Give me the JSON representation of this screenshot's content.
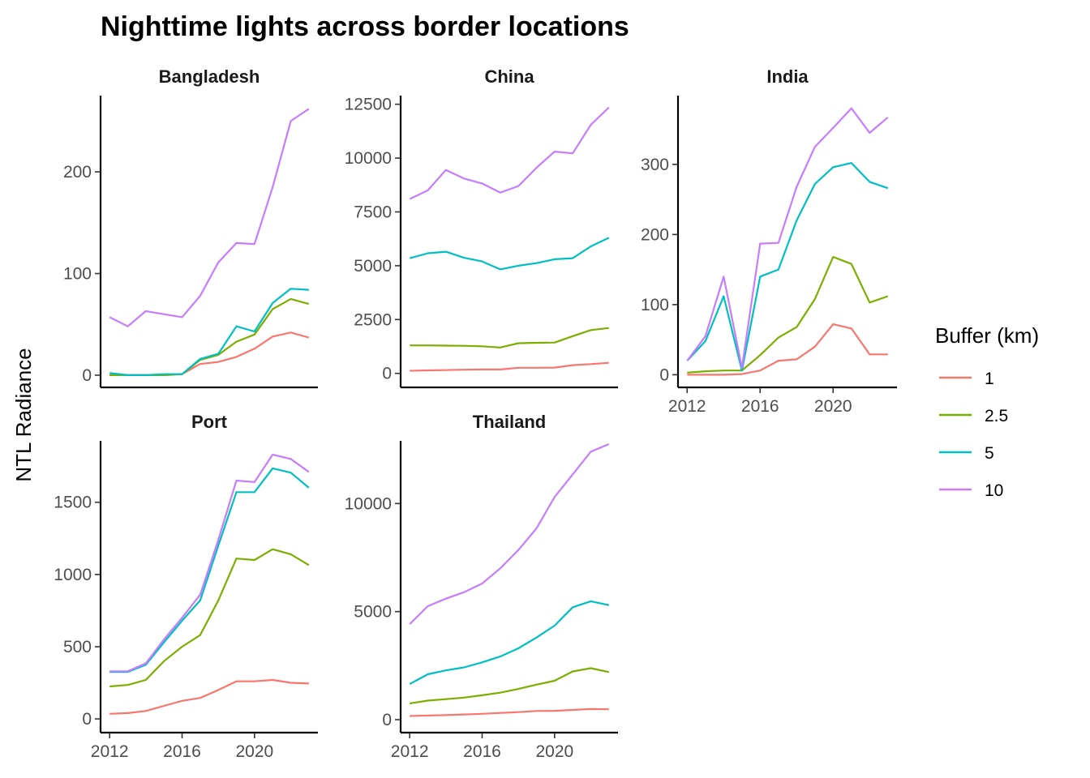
{
  "title": "Nighttime lights across border locations",
  "ylabel": "NTL Radiance",
  "legend": {
    "title": "Buffer (km)",
    "items": [
      {
        "label": "1",
        "color": "#F8766D"
      },
      {
        "label": "2.5",
        "color": "#7CAE00"
      },
      {
        "label": "5",
        "color": "#00BFC4"
      },
      {
        "label": "10",
        "color": "#C77CFF"
      }
    ]
  },
  "chart_data": [
    {
      "type": "line",
      "panel": "Bangladesh",
      "x": [
        2012,
        2013,
        2014,
        2015,
        2016,
        2017,
        2018,
        2019,
        2020,
        2021,
        2022,
        2023
      ],
      "ylim": [
        -12,
        275
      ],
      "yticks": [
        "0",
        "100",
        "200"
      ],
      "xticks": [],
      "series": [
        {
          "name": "1",
          "values": [
            0,
            0,
            0,
            0,
            1,
            11,
            13,
            18,
            26,
            38,
            42,
            37
          ]
        },
        {
          "name": "2.5",
          "values": [
            0,
            0,
            0,
            0,
            1,
            15,
            20,
            33,
            40,
            65,
            75,
            70
          ]
        },
        {
          "name": "5",
          "values": [
            2,
            0,
            0,
            1,
            1,
            16,
            21,
            48,
            43,
            71,
            85,
            84
          ]
        },
        {
          "name": "10",
          "values": [
            57,
            48,
            63,
            60,
            57,
            78,
            111,
            130,
            129,
            185,
            250,
            262
          ]
        }
      ]
    },
    {
      "type": "line",
      "panel": "China",
      "x": [
        2012,
        2013,
        2014,
        2015,
        2016,
        2017,
        2018,
        2019,
        2020,
        2021,
        2022,
        2023
      ],
      "ylim": [
        -650,
        12900
      ],
      "yticks": [
        "0",
        "2500",
        "5000",
        "7500",
        "10000",
        "12500"
      ],
      "xticks": [],
      "series": [
        {
          "name": "1",
          "values": [
            120,
            140,
            150,
            170,
            180,
            180,
            260,
            260,
            270,
            380,
            430,
            490
          ]
        },
        {
          "name": "2.5",
          "values": [
            1300,
            1300,
            1290,
            1280,
            1260,
            1200,
            1400,
            1420,
            1430,
            1730,
            2010,
            2110
          ]
        },
        {
          "name": "5",
          "values": [
            5350,
            5580,
            5650,
            5370,
            5200,
            4830,
            5000,
            5120,
            5300,
            5350,
            5900,
            6300
          ]
        },
        {
          "name": "10",
          "values": [
            8100,
            8500,
            9450,
            9050,
            8820,
            8400,
            8700,
            9550,
            10300,
            10220,
            11550,
            12350
          ]
        }
      ]
    },
    {
      "type": "line",
      "panel": "India",
      "x": [
        2012,
        2013,
        2014,
        2015,
        2016,
        2017,
        2018,
        2019,
        2020,
        2021,
        2022,
        2023
      ],
      "ylim": [
        -18,
        398
      ],
      "yticks": [
        "0",
        "100",
        "200",
        "300"
      ],
      "xticks": [
        "2012",
        "2016",
        "2020"
      ],
      "series": [
        {
          "name": "1",
          "values": [
            0,
            0,
            0,
            1,
            6,
            20,
            22,
            40,
            72,
            66,
            29,
            29
          ]
        },
        {
          "name": "2.5",
          "values": [
            3,
            5,
            6,
            6,
            28,
            53,
            68,
            108,
            168,
            158,
            103,
            112
          ]
        },
        {
          "name": "5",
          "values": [
            20,
            48,
            112,
            6,
            140,
            150,
            220,
            272,
            296,
            302,
            275,
            266
          ]
        },
        {
          "name": "10",
          "values": [
            20,
            55,
            140,
            10,
            187,
            188,
            268,
            325,
            352,
            380,
            345,
            367
          ]
        }
      ]
    },
    {
      "type": "line",
      "panel": "Port",
      "x": [
        2012,
        2013,
        2014,
        2015,
        2016,
        2017,
        2018,
        2019,
        2020,
        2021,
        2022,
        2023
      ],
      "ylim": [
        -95,
        1925
      ],
      "yticks": [
        "0",
        "500",
        "1000",
        "1500"
      ],
      "xticks": [
        "2012",
        "2016",
        "2020"
      ],
      "series": [
        {
          "name": "1",
          "values": [
            35,
            40,
            55,
            90,
            125,
            145,
            200,
            260,
            260,
            270,
            250,
            245
          ]
        },
        {
          "name": "2.5",
          "values": [
            225,
            235,
            270,
            400,
            500,
            580,
            820,
            1110,
            1100,
            1175,
            1140,
            1065
          ]
        },
        {
          "name": "5",
          "values": [
            325,
            325,
            375,
            530,
            680,
            820,
            1200,
            1570,
            1570,
            1735,
            1705,
            1600
          ]
        },
        {
          "name": "10",
          "values": [
            330,
            330,
            385,
            550,
            700,
            860,
            1240,
            1650,
            1640,
            1830,
            1800,
            1710
          ]
        }
      ]
    },
    {
      "type": "line",
      "panel": "Thailand",
      "x": [
        2012,
        2013,
        2014,
        2015,
        2016,
        2017,
        2018,
        2019,
        2020,
        2021,
        2022,
        2023
      ],
      "ylim": [
        -600,
        12900
      ],
      "yticks": [
        "0",
        "5000",
        "10000"
      ],
      "xticks": [
        "2012",
        "2016",
        "2020"
      ],
      "series": [
        {
          "name": "1",
          "values": [
            170,
            190,
            210,
            240,
            270,
            310,
            350,
            400,
            410,
            450,
            490,
            480
          ]
        },
        {
          "name": "2.5",
          "values": [
            750,
            880,
            950,
            1020,
            1130,
            1250,
            1420,
            1620,
            1800,
            2230,
            2380,
            2200
          ]
        },
        {
          "name": "5",
          "values": [
            1650,
            2100,
            2280,
            2420,
            2650,
            2920,
            3300,
            3800,
            4350,
            5200,
            5480,
            5300
          ]
        },
        {
          "name": "10",
          "values": [
            4420,
            5250,
            5600,
            5900,
            6300,
            7000,
            7850,
            8850,
            10300,
            11350,
            12400,
            12750
          ]
        }
      ]
    }
  ]
}
